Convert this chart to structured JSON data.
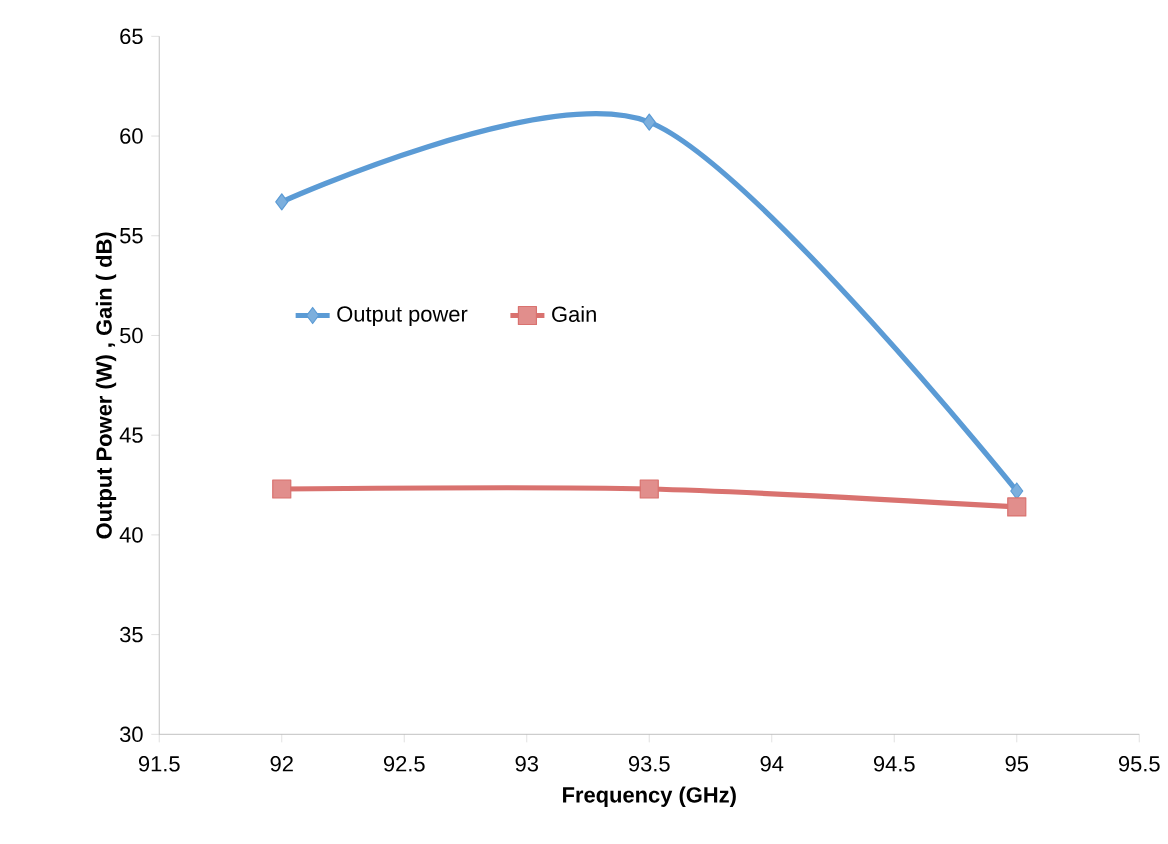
{
  "chart_data": {
    "type": "line",
    "xlabel": "Frequency (GHz)",
    "ylabel": "Output Power  (W) ,  Gain ( dB)",
    "x": [
      92,
      93.5,
      95
    ],
    "series": [
      {
        "name": "Output power",
        "color": "#5b9bd5",
        "values": [
          56.7,
          60.7,
          42.2
        ],
        "marker": "diamond"
      },
      {
        "name": "Gain",
        "color": "#d9726f",
        "values": [
          42.3,
          42.3,
          41.4
        ],
        "marker": "square"
      }
    ],
    "xlim": [
      91.5,
      95.5
    ],
    "xticks": [
      91.5,
      92,
      92.5,
      93,
      93.5,
      94,
      94.5,
      95,
      95.5
    ],
    "ylim": [
      30,
      65
    ],
    "yticks": [
      30,
      35,
      40,
      45,
      50,
      55,
      60,
      65
    ],
    "grid": false,
    "legend": "left",
    "line_style": "solid"
  }
}
